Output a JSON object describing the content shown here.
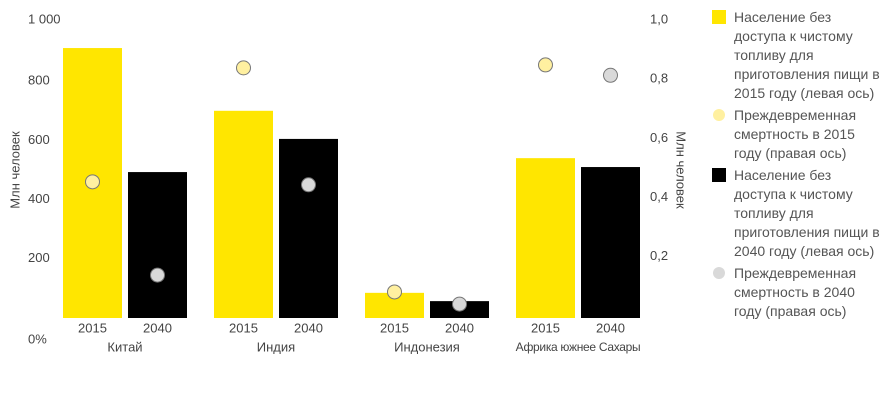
{
  "chart_data": {
    "type": "bar",
    "categories": [
      "Китай",
      "Индия",
      "Индонезия",
      "Африка южнее Сахары"
    ],
    "sublabels": [
      "2015",
      "2040"
    ],
    "ylabel": "Млн человек",
    "y2label": "Млн человек",
    "ylim": [
      0,
      1000
    ],
    "yticks": [
      {
        "value": 0,
        "label": "0%"
      },
      200,
      400,
      600,
      800,
      {
        "value": 1000,
        "label": "1 000"
      }
    ],
    "y2lim": [
      0,
      1
    ],
    "y2ticks": [
      {
        "value": 0.2,
        "label": "0,2"
      },
      {
        "value": 0.4,
        "label": "0,4"
      },
      {
        "value": 0.6,
        "label": "0,6"
      },
      {
        "value": 0.8,
        "label": "0,8"
      },
      {
        "value": 1,
        "label": "1,0"
      }
    ],
    "series": [
      {
        "name": "Население без доступа к чистому топливу для приготовления пищи в 2015 году (левая ось)",
        "type": "bar",
        "color": "#ffe600",
        "values": [
          912,
          700,
          85,
          540
        ]
      },
      {
        "name": "Преждевременная смертность в 2015 году (правая ось)",
        "type": "scatter",
        "axis": "y2",
        "color": "#fff0a0",
        "values": [
          0.46,
          0.845,
          0.088,
          0.855
        ]
      },
      {
        "name": "Население без доступа к чистому топливу для приготовления пищи в 2040 году (левая ось)",
        "type": "bar",
        "color": "#000000",
        "values": [
          493,
          605,
          57,
          510
        ]
      },
      {
        "name": "Преждевременная смертность в 2040 году (правая ось)",
        "type": "scatter",
        "axis": "y2",
        "color": "#d9d9d9",
        "values": [
          0.145,
          0.45,
          0.047,
          0.82
        ]
      }
    ]
  }
}
